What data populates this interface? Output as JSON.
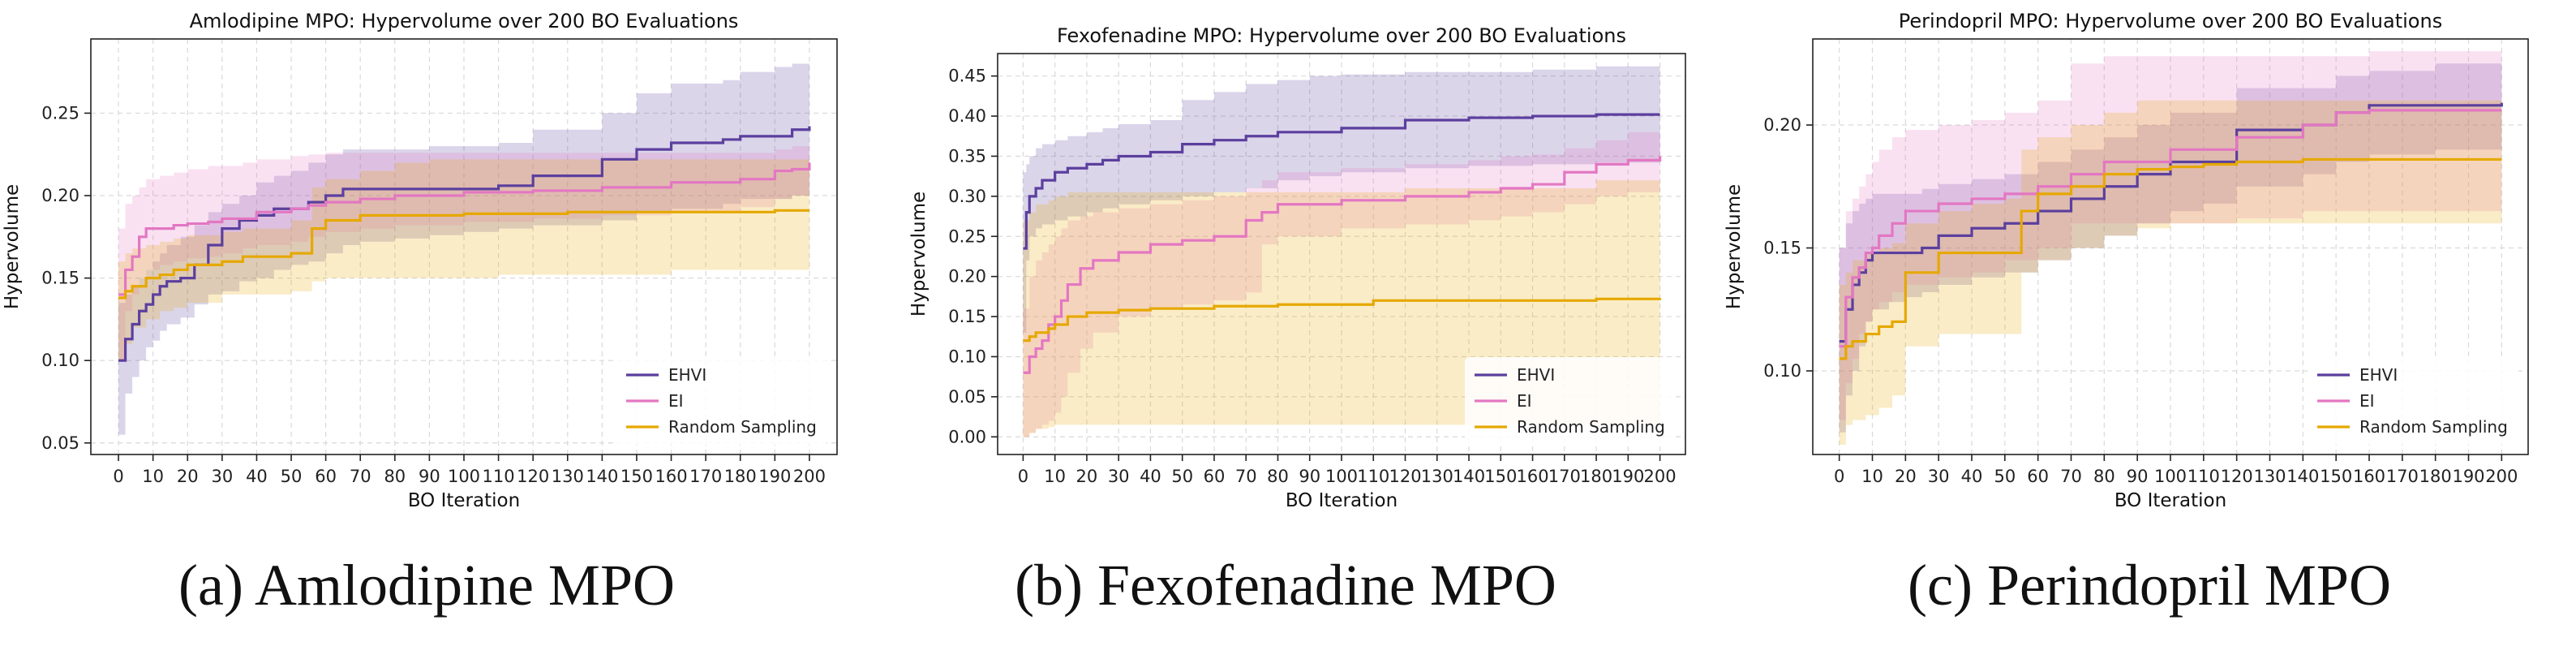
{
  "colors": {
    "EHVI": "#5b3f9e",
    "EI": "#e377c2",
    "Random Sampling": "#e6a800"
  },
  "captions": [
    "(a) Amlodipine MPO",
    "(b) Fexofenadine MPO",
    "(c) Perindopril MPO"
  ],
  "chart_data": [
    {
      "type": "line",
      "title": "Amlodipine MPO: Hypervolume over 200 BO Evaluations",
      "xlabel": "BO Iteration",
      "ylabel": "Hypervolume",
      "xlim": [
        -8,
        208
      ],
      "ylim": [
        0.043,
        0.295
      ],
      "xticks": [
        0,
        10,
        20,
        30,
        40,
        50,
        60,
        70,
        80,
        90,
        100,
        110,
        120,
        130,
        140,
        150,
        160,
        170,
        180,
        190,
        200
      ],
      "yticks": [
        0.05,
        0.1,
        0.15,
        0.2,
        0.25
      ],
      "grid": true,
      "legend": "lower-right",
      "series": [
        {
          "name": "EHVI",
          "x": [
            0,
            2,
            4,
            6,
            8,
            10,
            12,
            14,
            18,
            22,
            26,
            30,
            35,
            40,
            45,
            50,
            55,
            60,
            65,
            70,
            80,
            90,
            100,
            110,
            120,
            128,
            140,
            150,
            160,
            175,
            180,
            190,
            195,
            200
          ],
          "y": [
            0.1,
            0.113,
            0.122,
            0.13,
            0.134,
            0.14,
            0.145,
            0.148,
            0.15,
            0.158,
            0.17,
            0.18,
            0.185,
            0.188,
            0.192,
            0.192,
            0.196,
            0.2,
            0.204,
            0.204,
            0.204,
            0.204,
            0.204,
            0.206,
            0.212,
            0.212,
            0.222,
            0.228,
            0.232,
            0.234,
            0.236,
            0.236,
            0.24,
            0.242
          ],
          "low": [
            0.055,
            0.08,
            0.09,
            0.1,
            0.108,
            0.112,
            0.118,
            0.122,
            0.126,
            0.134,
            0.14,
            0.142,
            0.148,
            0.15,
            0.155,
            0.158,
            0.16,
            0.165,
            0.17,
            0.172,
            0.174,
            0.176,
            0.178,
            0.18,
            0.182,
            0.182,
            0.185,
            0.19,
            0.192,
            0.195,
            0.198,
            0.198,
            0.2,
            0.2
          ],
          "high": [
            0.135,
            0.14,
            0.145,
            0.15,
            0.155,
            0.16,
            0.165,
            0.17,
            0.175,
            0.182,
            0.19,
            0.195,
            0.2,
            0.208,
            0.212,
            0.215,
            0.22,
            0.225,
            0.228,
            0.228,
            0.228,
            0.23,
            0.23,
            0.232,
            0.24,
            0.24,
            0.25,
            0.262,
            0.268,
            0.27,
            0.275,
            0.278,
            0.28,
            0.283
          ]
        },
        {
          "name": "EI",
          "x": [
            0,
            2,
            4,
            6,
            8,
            12,
            16,
            20,
            26,
            30,
            36,
            40,
            50,
            55,
            60,
            70,
            80,
            100,
            120,
            140,
            160,
            180,
            190,
            195,
            200
          ],
          "y": [
            0.14,
            0.155,
            0.163,
            0.175,
            0.18,
            0.18,
            0.182,
            0.183,
            0.184,
            0.186,
            0.186,
            0.19,
            0.192,
            0.194,
            0.196,
            0.198,
            0.2,
            0.202,
            0.203,
            0.205,
            0.208,
            0.21,
            0.215,
            0.216,
            0.22
          ],
          "low": [
            0.1,
            0.13,
            0.14,
            0.15,
            0.155,
            0.158,
            0.16,
            0.162,
            0.163,
            0.165,
            0.168,
            0.17,
            0.172,
            0.175,
            0.178,
            0.18,
            0.182,
            0.184,
            0.186,
            0.188,
            0.19,
            0.193,
            0.198,
            0.2,
            0.205
          ],
          "high": [
            0.18,
            0.195,
            0.2,
            0.205,
            0.21,
            0.212,
            0.214,
            0.216,
            0.218,
            0.218,
            0.22,
            0.222,
            0.224,
            0.225,
            0.226,
            0.226,
            0.226,
            0.226,
            0.226,
            0.226,
            0.226,
            0.226,
            0.228,
            0.23,
            0.232
          ]
        },
        {
          "name": "Random Sampling",
          "x": [
            0,
            2,
            4,
            8,
            12,
            16,
            20,
            30,
            36,
            50,
            56,
            60,
            70,
            80,
            90,
            100,
            110,
            120,
            130,
            140,
            150,
            160,
            170,
            180,
            190,
            200
          ],
          "y": [
            0.138,
            0.142,
            0.145,
            0.15,
            0.152,
            0.155,
            0.158,
            0.16,
            0.163,
            0.165,
            0.18,
            0.185,
            0.188,
            0.188,
            0.188,
            0.189,
            0.189,
            0.189,
            0.19,
            0.19,
            0.19,
            0.19,
            0.19,
            0.19,
            0.191,
            0.191
          ],
          "low": [
            0.1,
            0.11,
            0.12,
            0.125,
            0.13,
            0.132,
            0.135,
            0.14,
            0.14,
            0.142,
            0.148,
            0.15,
            0.15,
            0.15,
            0.15,
            0.15,
            0.152,
            0.152,
            0.152,
            0.152,
            0.152,
            0.155,
            0.155,
            0.155,
            0.155,
            0.155
          ],
          "high": [
            0.16,
            0.165,
            0.168,
            0.17,
            0.172,
            0.174,
            0.176,
            0.178,
            0.18,
            0.185,
            0.205,
            0.21,
            0.215,
            0.22,
            0.222,
            0.222,
            0.222,
            0.222,
            0.222,
            0.222,
            0.222,
            0.222,
            0.222,
            0.222,
            0.222,
            0.222
          ]
        }
      ]
    },
    {
      "type": "line",
      "title": "Fexofenadine MPO: Hypervolume over 200 BO Evaluations",
      "xlabel": "BO Iteration",
      "ylabel": "Hypervolume",
      "xlim": [
        -8,
        208
      ],
      "ylim": [
        -0.022,
        0.478
      ],
      "xticks": [
        0,
        10,
        20,
        30,
        40,
        50,
        60,
        70,
        80,
        90,
        100,
        110,
        120,
        130,
        140,
        150,
        160,
        170,
        180,
        190,
        200
      ],
      "yticks": [
        0.0,
        0.05,
        0.1,
        0.15,
        0.2,
        0.25,
        0.3,
        0.35,
        0.4,
        0.45
      ],
      "grid": true,
      "legend": "lower-right",
      "series": [
        {
          "name": "EHVI",
          "x": [
            0,
            1,
            2,
            4,
            6,
            10,
            14,
            20,
            25,
            30,
            40,
            50,
            60,
            70,
            80,
            90,
            100,
            110,
            120,
            140,
            160,
            180,
            200
          ],
          "y": [
            0.235,
            0.28,
            0.3,
            0.31,
            0.32,
            0.33,
            0.335,
            0.34,
            0.345,
            0.35,
            0.355,
            0.365,
            0.37,
            0.375,
            0.38,
            0.38,
            0.385,
            0.385,
            0.395,
            0.398,
            0.4,
            0.402,
            0.402
          ],
          "low": [
            0.13,
            0.22,
            0.25,
            0.26,
            0.265,
            0.27,
            0.275,
            0.28,
            0.285,
            0.29,
            0.295,
            0.3,
            0.305,
            0.31,
            0.32,
            0.325,
            0.33,
            0.33,
            0.335,
            0.338,
            0.34,
            0.342,
            0.345
          ],
          "high": [
            0.33,
            0.34,
            0.35,
            0.36,
            0.365,
            0.37,
            0.375,
            0.38,
            0.385,
            0.39,
            0.395,
            0.42,
            0.43,
            0.44,
            0.445,
            0.45,
            0.452,
            0.452,
            0.455,
            0.455,
            0.458,
            0.462,
            0.465
          ]
        },
        {
          "name": "EI",
          "x": [
            0,
            2,
            4,
            6,
            8,
            10,
            12,
            14,
            18,
            22,
            30,
            40,
            50,
            60,
            70,
            75,
            80,
            100,
            120,
            140,
            150,
            160,
            170,
            180,
            190,
            200
          ],
          "y": [
            0.08,
            0.1,
            0.11,
            0.12,
            0.14,
            0.15,
            0.17,
            0.19,
            0.21,
            0.22,
            0.23,
            0.24,
            0.245,
            0.25,
            0.27,
            0.28,
            0.29,
            0.295,
            0.3,
            0.305,
            0.31,
            0.315,
            0.33,
            0.34,
            0.345,
            0.35
          ],
          "low": [
            0.0,
            0.005,
            0.01,
            0.015,
            0.02,
            0.03,
            0.05,
            0.08,
            0.11,
            0.13,
            0.15,
            0.16,
            0.165,
            0.17,
            0.18,
            0.24,
            0.25,
            0.26,
            0.265,
            0.27,
            0.275,
            0.28,
            0.29,
            0.3,
            0.305,
            0.31
          ],
          "high": [
            0.16,
            0.2,
            0.22,
            0.23,
            0.24,
            0.25,
            0.26,
            0.27,
            0.275,
            0.28,
            0.285,
            0.29,
            0.295,
            0.3,
            0.31,
            0.32,
            0.33,
            0.335,
            0.34,
            0.345,
            0.35,
            0.352,
            0.36,
            0.37,
            0.38,
            0.385
          ]
        },
        {
          "name": "Random Sampling",
          "x": [
            0,
            2,
            4,
            8,
            10,
            14,
            20,
            30,
            40,
            50,
            60,
            80,
            100,
            110,
            120,
            140,
            160,
            180,
            200
          ],
          "y": [
            0.12,
            0.125,
            0.13,
            0.135,
            0.14,
            0.15,
            0.155,
            0.158,
            0.16,
            0.16,
            0.163,
            0.165,
            0.165,
            0.17,
            0.17,
            0.17,
            0.17,
            0.172,
            0.173
          ],
          "low": [
            0.0,
            0.005,
            0.01,
            0.012,
            0.015,
            0.015,
            0.015,
            0.015,
            0.015,
            0.015,
            0.015,
            0.015,
            0.015,
            0.015,
            0.015,
            0.015,
            0.015,
            0.015,
            0.015
          ],
          "high": [
            0.27,
            0.28,
            0.29,
            0.295,
            0.3,
            0.305,
            0.305,
            0.305,
            0.305,
            0.305,
            0.305,
            0.305,
            0.305,
            0.305,
            0.31,
            0.31,
            0.31,
            0.32,
            0.325
          ]
        }
      ]
    },
    {
      "type": "line",
      "title": "Perindopril MPO: Hypervolume over 200 BO Evaluations",
      "xlabel": "BO Iteration",
      "ylabel": "Hypervolume",
      "xlim": [
        -8,
        208
      ],
      "ylim": [
        0.066,
        0.235
      ],
      "xticks": [
        0,
        10,
        20,
        30,
        40,
        50,
        60,
        70,
        80,
        90,
        100,
        110,
        120,
        130,
        140,
        150,
        160,
        170,
        180,
        190,
        200
      ],
      "yticks": [
        0.1,
        0.15,
        0.2
      ],
      "grid": true,
      "legend": "lower-right",
      "series": [
        {
          "name": "EHVI",
          "x": [
            0,
            2,
            4,
            6,
            8,
            10,
            15,
            20,
            25,
            30,
            40,
            50,
            60,
            70,
            80,
            90,
            100,
            110,
            120,
            140,
            150,
            160,
            180,
            200
          ],
          "y": [
            0.112,
            0.125,
            0.135,
            0.14,
            0.145,
            0.148,
            0.148,
            0.148,
            0.15,
            0.155,
            0.158,
            0.16,
            0.165,
            0.17,
            0.175,
            0.18,
            0.185,
            0.185,
            0.198,
            0.2,
            0.205,
            0.208,
            0.208,
            0.209
          ],
          "low": [
            0.075,
            0.09,
            0.1,
            0.11,
            0.12,
            0.125,
            0.128,
            0.13,
            0.132,
            0.135,
            0.138,
            0.14,
            0.145,
            0.15,
            0.155,
            0.16,
            0.165,
            0.168,
            0.175,
            0.18,
            0.185,
            0.188,
            0.19,
            0.192
          ],
          "high": [
            0.15,
            0.16,
            0.165,
            0.168,
            0.17,
            0.172,
            0.172,
            0.172,
            0.174,
            0.176,
            0.178,
            0.18,
            0.185,
            0.19,
            0.195,
            0.2,
            0.205,
            0.205,
            0.215,
            0.215,
            0.22,
            0.222,
            0.225,
            0.225
          ]
        },
        {
          "name": "EI",
          "x": [
            0,
            2,
            4,
            6,
            8,
            10,
            12,
            16,
            20,
            30,
            40,
            50,
            60,
            70,
            80,
            100,
            120,
            140,
            150,
            160,
            200
          ],
          "y": [
            0.11,
            0.13,
            0.138,
            0.142,
            0.148,
            0.15,
            0.155,
            0.16,
            0.165,
            0.168,
            0.17,
            0.172,
            0.175,
            0.18,
            0.185,
            0.19,
            0.195,
            0.2,
            0.205,
            0.206,
            0.206
          ],
          "low": [
            0.08,
            0.095,
            0.105,
            0.115,
            0.12,
            0.125,
            0.128,
            0.132,
            0.135,
            0.138,
            0.14,
            0.145,
            0.15,
            0.16,
            0.16,
            0.16,
            0.162,
            0.165,
            0.165,
            0.165,
            0.165
          ],
          "high": [
            0.15,
            0.165,
            0.17,
            0.175,
            0.18,
            0.185,
            0.19,
            0.195,
            0.198,
            0.2,
            0.202,
            0.205,
            0.21,
            0.225,
            0.228,
            0.228,
            0.228,
            0.228,
            0.228,
            0.23,
            0.23
          ]
        },
        {
          "name": "Random Sampling",
          "x": [
            0,
            2,
            4,
            8,
            12,
            16,
            20,
            30,
            40,
            50,
            55,
            60,
            70,
            80,
            90,
            100,
            110,
            120,
            140,
            160,
            180,
            200
          ],
          "y": [
            0.105,
            0.11,
            0.112,
            0.115,
            0.118,
            0.12,
            0.14,
            0.148,
            0.148,
            0.148,
            0.165,
            0.172,
            0.175,
            0.18,
            0.182,
            0.183,
            0.184,
            0.185,
            0.186,
            0.186,
            0.186,
            0.186
          ],
          "low": [
            0.07,
            0.078,
            0.08,
            0.082,
            0.085,
            0.09,
            0.11,
            0.115,
            0.115,
            0.115,
            0.14,
            0.145,
            0.15,
            0.155,
            0.158,
            0.16,
            0.16,
            0.16,
            0.16,
            0.16,
            0.16,
            0.16
          ],
          "high": [
            0.135,
            0.14,
            0.145,
            0.148,
            0.15,
            0.152,
            0.16,
            0.165,
            0.168,
            0.17,
            0.19,
            0.195,
            0.2,
            0.205,
            0.21,
            0.21,
            0.21,
            0.21,
            0.21,
            0.21,
            0.21,
            0.21
          ]
        }
      ]
    }
  ]
}
